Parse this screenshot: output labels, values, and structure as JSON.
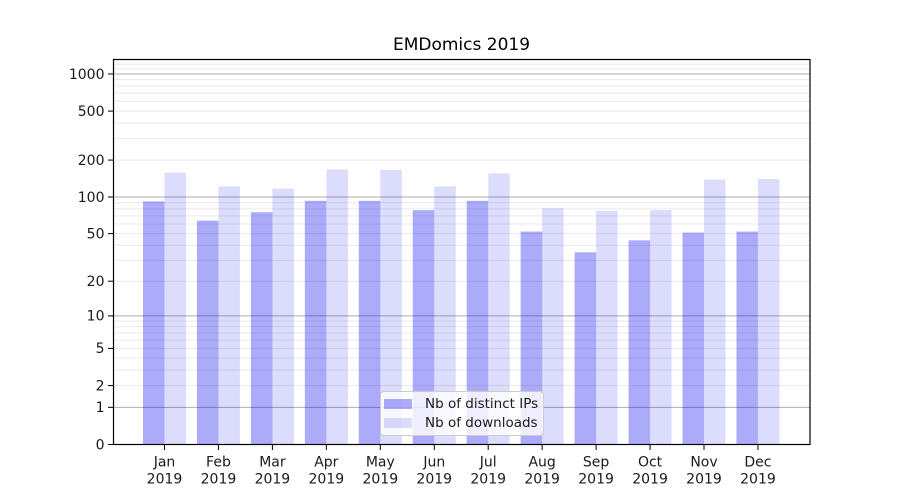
{
  "chart_data": {
    "type": "bar",
    "title": "EMDomics 2019",
    "categories": [
      "Jan 2019",
      "Feb 2019",
      "Mar 2019",
      "Apr 2019",
      "May 2019",
      "Jun 2019",
      "Jul 2019",
      "Aug 2019",
      "Sep 2019",
      "Oct 2019",
      "Nov 2019",
      "Dec 2019"
    ],
    "series": [
      {
        "name": "Nb of distinct IPs",
        "color": "rgba(10,10,240,0.34)",
        "values": [
          92,
          64,
          75,
          93,
          93,
          78,
          93,
          52,
          35,
          44,
          51,
          52
        ]
      },
      {
        "name": "Nb of downloads",
        "color": "rgba(10,10,240,0.14)",
        "values": [
          158,
          122,
          117,
          168,
          166,
          122,
          156,
          81,
          77,
          78,
          139,
          140
        ]
      }
    ],
    "xlabel": "",
    "ylabel": "",
    "yscale": "log1p",
    "ylim": [
      0,
      1310
    ],
    "yticks": [
      0,
      1,
      2,
      5,
      10,
      20,
      50,
      100,
      200,
      500,
      1000
    ],
    "grid": "major+minor",
    "legend_position": "lower center",
    "colors": {
      "grid_minor": "#eaeaea",
      "grid_major": "#adadad",
      "axis": "#000000",
      "text": "#1a1a1a",
      "legend_bg": "rgba(255,255,255,0.8)",
      "legend_border": "#cccccc"
    }
  }
}
